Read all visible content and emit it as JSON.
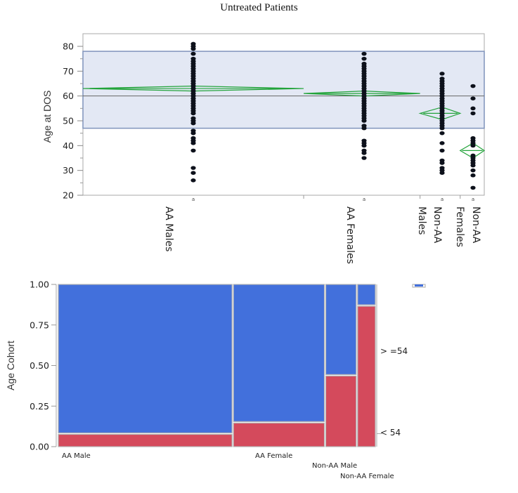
{
  "page": {
    "title": "Untreated Patients"
  },
  "chart_data": [
    {
      "type": "scatter",
      "subtype": "oneway-means-diamonds",
      "title": "Untreated Patients",
      "ylabel": "Age at DOS",
      "xlabel": "",
      "ylim": [
        20,
        82
      ],
      "yticks": [
        20,
        30,
        40,
        50,
        60,
        70,
        80
      ],
      "grand_mean": 60,
      "reference_band": [
        47,
        78
      ],
      "categories": [
        "AA Males",
        "AA Females",
        "Non-AA Males",
        "Non-AA Females"
      ],
      "category_labels": [
        [
          "AA Males"
        ],
        [
          "AA Females"
        ],
        [
          "Males",
          "Non-AA"
        ],
        [
          "Females",
          "Non-AA"
        ]
      ],
      "category_weights": [
        0.55,
        0.29,
        0.1,
        0.06
      ],
      "groups": [
        {
          "name": "AA Males",
          "mean": 63,
          "ci": [
            62,
            64
          ],
          "values": [
            81,
            80,
            79,
            77,
            75,
            74,
            73,
            72,
            71,
            70,
            69,
            68,
            67,
            66,
            65,
            64,
            63,
            62,
            61,
            60,
            59,
            58,
            57,
            56,
            55,
            54,
            53,
            51,
            50,
            49,
            46,
            45,
            43,
            42,
            41,
            38,
            31,
            29,
            26
          ]
        },
        {
          "name": "AA Females",
          "mean": 61,
          "ci": [
            60,
            62
          ],
          "values": [
            77,
            75,
            73,
            72,
            71,
            70,
            69,
            68,
            67,
            66,
            65,
            64,
            63,
            62,
            61,
            60,
            59,
            58,
            57,
            56,
            55,
            54,
            53,
            52,
            51,
            50,
            48,
            47,
            42,
            41,
            40,
            38,
            37,
            35
          ]
        },
        {
          "name": "Non-AA Males",
          "mean": 53,
          "ci": [
            50.5,
            55.5
          ],
          "values": [
            69,
            67,
            66,
            65,
            64,
            63,
            62,
            61,
            60,
            59,
            58,
            57,
            56,
            55,
            54,
            53,
            52,
            51,
            50,
            49,
            48,
            47,
            45,
            41,
            38,
            34,
            33,
            31,
            30,
            29
          ]
        },
        {
          "name": "Non-AA Females",
          "mean": 38,
          "ci": [
            35,
            41
          ],
          "values": [
            64,
            59,
            55,
            53,
            43,
            42,
            41,
            40,
            36,
            35,
            34,
            33,
            32,
            30,
            28,
            23
          ]
        }
      ],
      "colors": {
        "points": "#0d111b",
        "diamond": "#22a33a",
        "band_fill": "#e3e8f4",
        "band_edge": "#7f93bb",
        "mean_line": "#666666"
      }
    },
    {
      "type": "bar",
      "subtype": "mosaic",
      "ylabel": "Age Cohort",
      "ylim": [
        0,
        1
      ],
      "yticks": [
        "0.00",
        "0.25",
        "0.50",
        "0.75",
        "1.00"
      ],
      "categories": [
        "AA Male",
        "AA Female",
        "Non-AA Male",
        "Non-AA Female"
      ],
      "category_widths": [
        0.55,
        0.29,
        0.1,
        0.05
      ],
      "levels": [
        ">=54",
        "<54"
      ],
      "level_labels": [
        "> =54",
        "< 54"
      ],
      "series": [
        {
          "name": "<54",
          "values": [
            0.08,
            0.15,
            0.44,
            0.87
          ],
          "color": "#d44a5c"
        },
        {
          "name": ">=54",
          "values": [
            0.92,
            0.85,
            0.56,
            0.13
          ],
          "color": "#4270dc"
        }
      ]
    }
  ]
}
